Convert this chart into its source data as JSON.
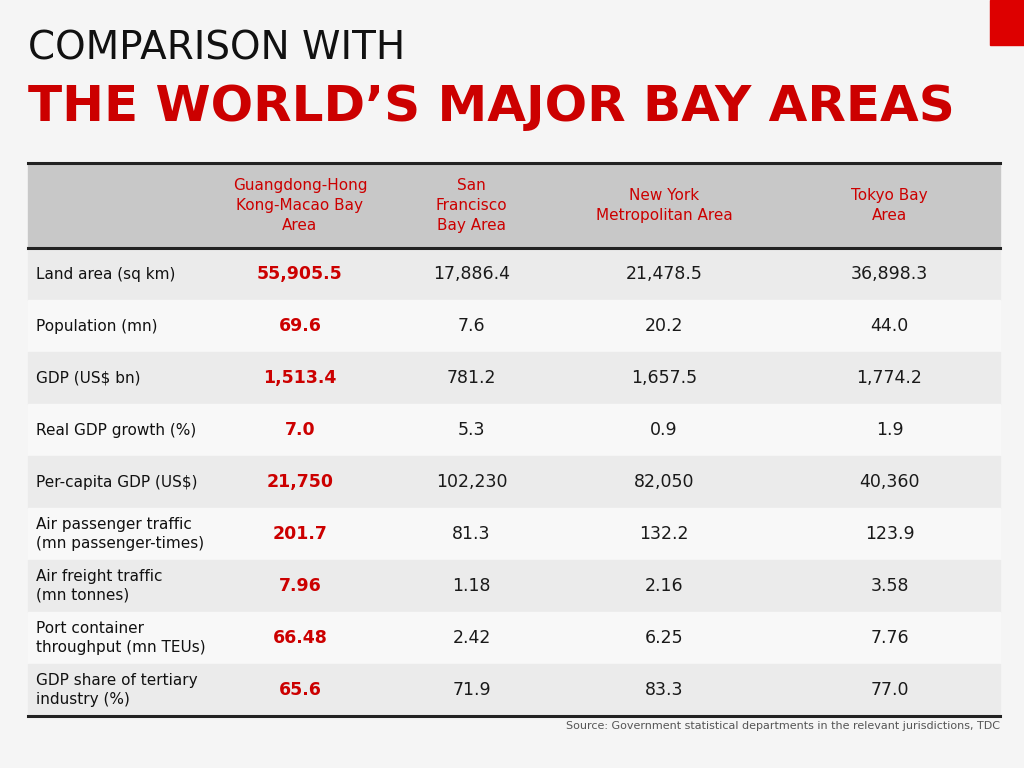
{
  "title_line1": "COMPARISON WITH",
  "title_line2": "THE WORLD’S MAJOR BAY AREAS",
  "title_line1_color": "#111111",
  "title_line2_color": "#cc0000",
  "red_rect_color": "#dd0000",
  "background_color": "#f5f5f5",
  "table_header_bg": "#c8c8c8",
  "table_row_bg_odd": "#ebebeb",
  "table_row_bg_even": "#f8f8f8",
  "col_headers": [
    "Guangdong-Hong\nKong-Macao Bay\nArea",
    "San\nFrancisco\nBay Area",
    "New York\nMetropolitan Area",
    "Tokyo Bay\nArea"
  ],
  "col_header_color": "#cc0000",
  "row_labels": [
    "Land area (sq km)",
    "Population (mn)",
    "GDP (US$ bn)",
    "Real GDP growth (%)",
    "Per-capita GDP (US$)",
    "Air passenger traffic\n(mn passenger-times)",
    "Air freight traffic\n(mn tonnes)",
    "Port container\nthroughput (mn TEUs)",
    "GDP share of tertiary\nindustry (%)"
  ],
  "col1_values": [
    "55,905.5",
    "69.6",
    "1,513.4",
    "7.0",
    "21,750",
    "201.7",
    "7.96",
    "66.48",
    "65.6"
  ],
  "col2_values": [
    "17,886.4",
    "7.6",
    "781.2",
    "5.3",
    "102,230",
    "81.3",
    "1.18",
    "2.42",
    "71.9"
  ],
  "col3_values": [
    "21,478.5",
    "20.2",
    "1,657.5",
    "0.9",
    "82,050",
    "132.2",
    "2.16",
    "6.25",
    "83.3"
  ],
  "col4_values": [
    "36,898.3",
    "44.0",
    "1,774.2",
    "1.9",
    "40,360",
    "123.9",
    "3.58",
    "7.76",
    "77.0"
  ],
  "col1_color": "#cc0000",
  "other_col_color": "#1a1a1a",
  "source_text": "Source: Government statistical departments in the relevant jurisdictions, TDC",
  "source_color": "#555555"
}
